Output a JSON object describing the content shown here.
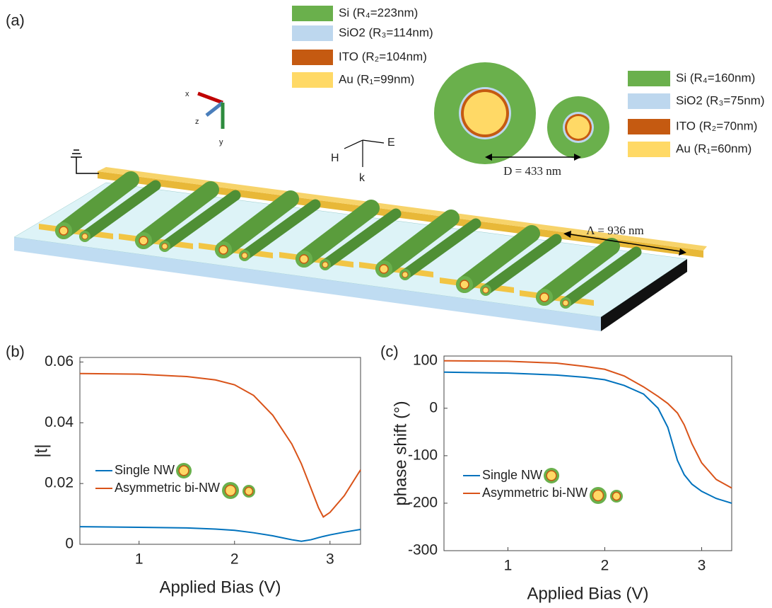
{
  "panel_a": {
    "label": "(a)",
    "legend_large": [
      {
        "text": "Si (R₄=223nm)",
        "color": "#6ab04c"
      },
      {
        "text": "SiO2 (R₃=114nm)",
        "color": "#bdd7ee"
      },
      {
        "text": "ITO (R₂=104nm)",
        "color": "#c55a11"
      },
      {
        "text": "Au (R₁=99nm)",
        "color": "#ffd966"
      }
    ],
    "legend_small": [
      {
        "text": "Si (R₄=160nm)",
        "color": "#6ab04c"
      },
      {
        "text": "SiO2 (R₃=75nm)",
        "color": "#bdd7ee"
      },
      {
        "text": "ITO (R₂=70nm)",
        "color": "#c55a11"
      },
      {
        "text": "Au (R₁=60nm)",
        "color": "#ffd966"
      }
    ],
    "distance": "D = 433 nm",
    "period": "Λ = 936 nm",
    "axes": [
      "x",
      "z",
      "y"
    ],
    "field": [
      "H",
      "E",
      "k"
    ]
  },
  "chart_data": [
    {
      "type": "line",
      "panel_label": "(b)",
      "xlabel": "Applied Bias (V)",
      "ylabel": "|t|",
      "x": [
        0.38,
        1,
        1.5,
        1.8,
        2,
        2.2,
        2.4,
        2.6,
        2.7,
        2.8,
        2.88,
        2.93,
        3,
        3.15,
        3.32
      ],
      "series": [
        {
          "name": "Single NW",
          "color": "#0072bd",
          "values": [
            0.0058,
            0.0056,
            0.0054,
            0.005,
            0.0046,
            0.0038,
            0.0028,
            0.0015,
            0.001,
            0.0015,
            0.0022,
            0.0026,
            0.0031,
            0.004,
            0.0049
          ]
        },
        {
          "name": "Asymmetric bi-NW",
          "color": "#d95319",
          "values": [
            0.0562,
            0.056,
            0.0552,
            0.0541,
            0.0525,
            0.049,
            0.0425,
            0.033,
            0.0265,
            0.0185,
            0.012,
            0.009,
            0.0105,
            0.016,
            0.0245
          ]
        }
      ],
      "xlim": [
        0.38,
        3.32
      ],
      "ylim": [
        0,
        0.0615
      ],
      "xticks": [
        1,
        2,
        3
      ],
      "yticks": [
        0,
        0.02,
        0.04,
        0.06
      ]
    },
    {
      "type": "line",
      "panel_label": "(c)",
      "xlabel": "Applied Bias (V)",
      "ylabel": "phase shift (°)",
      "x": [
        0.34,
        1,
        1.5,
        1.8,
        2,
        2.2,
        2.4,
        2.55,
        2.65,
        2.75,
        2.82,
        2.9,
        3,
        3.15,
        3.31
      ],
      "series": [
        {
          "name": "Single NW",
          "color": "#0072bd",
          "values": [
            76,
            74,
            70,
            65,
            60,
            48,
            30,
            0,
            -40,
            -110,
            -140,
            -160,
            -175,
            -190,
            -200
          ]
        },
        {
          "name": "Asymmetric bi-NW",
          "color": "#d95319",
          "values": [
            100,
            99,
            95,
            88,
            82,
            68,
            45,
            25,
            10,
            -10,
            -35,
            -75,
            -115,
            -150,
            -168
          ]
        }
      ],
      "xlim": [
        0.34,
        3.31
      ],
      "ylim": [
        -300,
        110
      ],
      "xticks": [
        1,
        2,
        3
      ],
      "yticks": [
        -300,
        -200,
        -100,
        0,
        100
      ]
    }
  ]
}
